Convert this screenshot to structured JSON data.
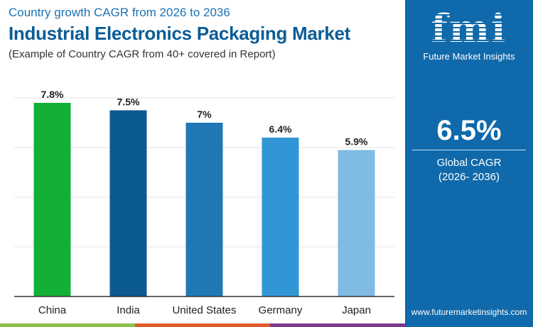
{
  "header": {
    "subtitle": "Country growth CAGR from 2026 to 2036",
    "title": "Industrial Electronics Packaging Market",
    "note": "(Example of Country CAGR from 40+ covered in Report)"
  },
  "chart_data": {
    "type": "bar",
    "categories": [
      "China",
      "India",
      "United States",
      "Germany",
      "Japan"
    ],
    "values": [
      7.8,
      7.5,
      7,
      6.4,
      5.9
    ],
    "labels": [
      "7.8%",
      "7.5%",
      "7%",
      "6.4%",
      "5.9%"
    ],
    "colors": [
      "#12b036",
      "#0b5a91",
      "#1f78b4",
      "#3196d6",
      "#7fbbe3"
    ],
    "ylim": [
      0,
      8
    ],
    "grid": true
  },
  "panel": {
    "brand": "fmi",
    "brand_name": "Future Market Insights",
    "global_cagr": "6.5%",
    "global_label": "Global CAGR",
    "period": "(2026- 2036)",
    "url": "www.futuremarketinsights.com",
    "background": "#0f69aa"
  },
  "stripes": [
    "#8cc04b",
    "#e35a2a",
    "#7c3a8c"
  ]
}
